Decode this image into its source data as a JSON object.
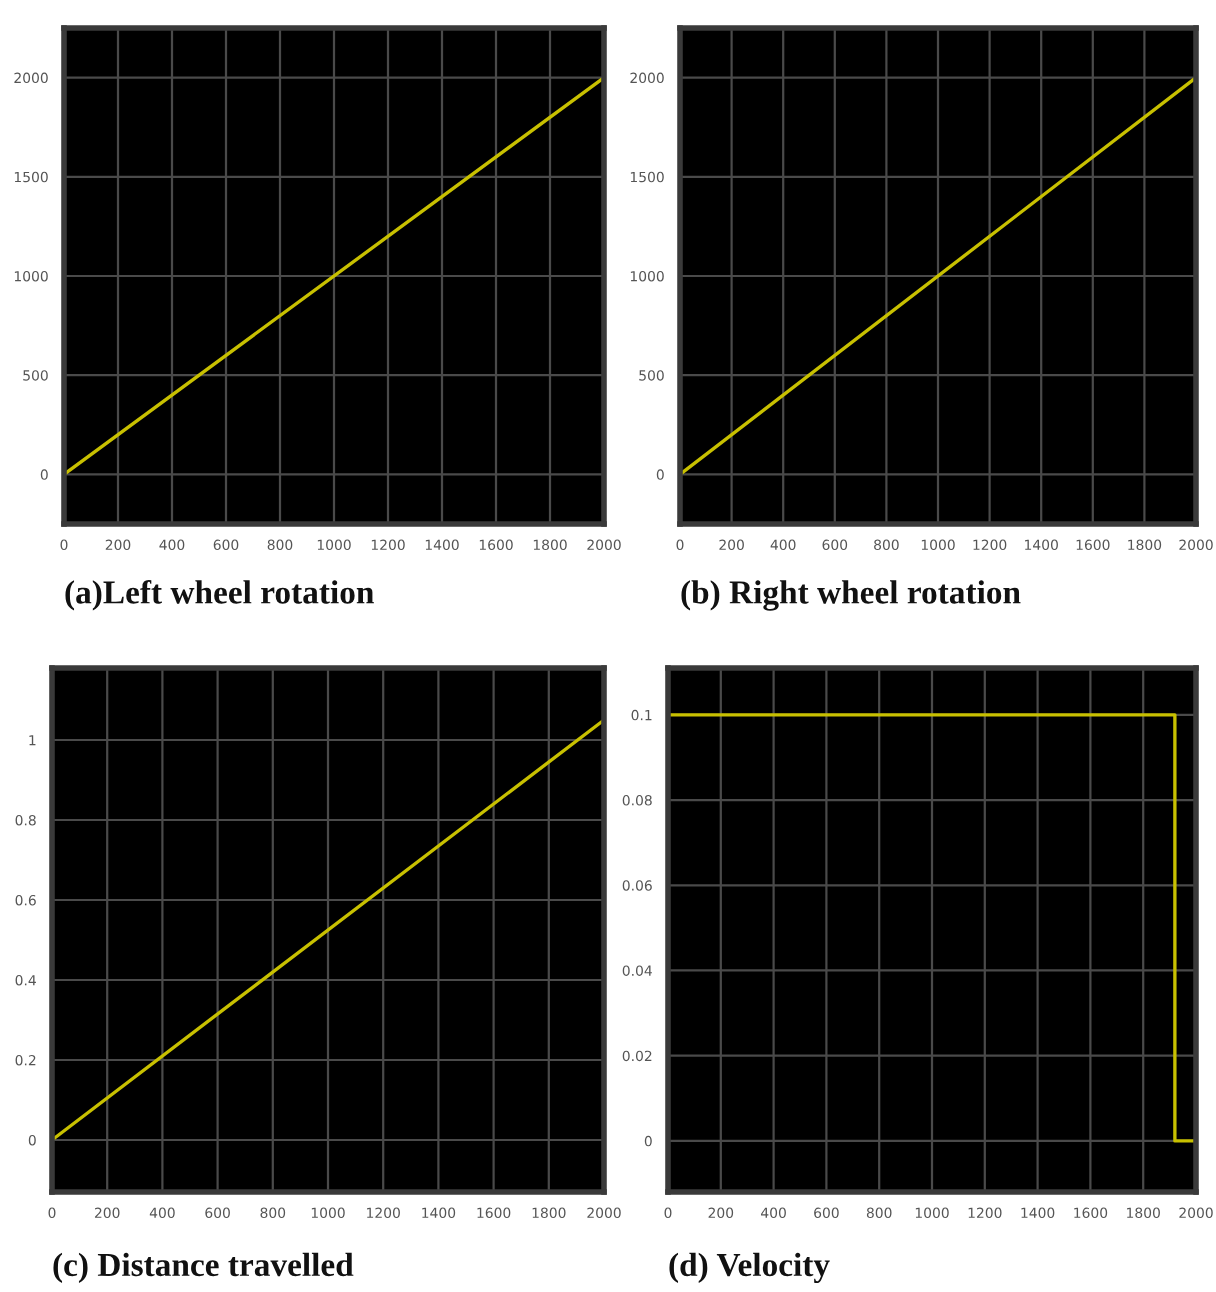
{
  "chart_data": [
    {
      "type": "line",
      "title": "(a)Left wheel rotation",
      "x": [
        0,
        2000
      ],
      "series": [
        {
          "color": "#c8c000",
          "values": [
            0,
            2000
          ]
        }
      ],
      "xlim": [
        0,
        2000
      ],
      "ylim": [
        -250,
        2250
      ],
      "xticks": [
        0,
        200,
        400,
        600,
        800,
        1000,
        1200,
        1400,
        1600,
        1800,
        2000
      ],
      "yticks": [
        0,
        500,
        1000,
        1500,
        2000
      ],
      "grid": true
    },
    {
      "type": "line",
      "title": "(b) Right wheel rotation",
      "x": [
        0,
        2000
      ],
      "series": [
        {
          "color": "#c8c000",
          "values": [
            0,
            2000
          ]
        }
      ],
      "xlim": [
        0,
        2000
      ],
      "ylim": [
        -250,
        2250
      ],
      "xticks": [
        0,
        200,
        400,
        600,
        800,
        1000,
        1200,
        1400,
        1600,
        1800,
        2000
      ],
      "yticks": [
        0,
        500,
        1000,
        1500,
        2000
      ],
      "grid": true
    },
    {
      "type": "line",
      "title": "(c) Distance travelled",
      "x": [
        0,
        2000
      ],
      "series": [
        {
          "color": "#c8c000",
          "values": [
            0,
            1.05
          ]
        }
      ],
      "xlim": [
        0,
        2000
      ],
      "ylim": [
        -0.13,
        1.18
      ],
      "xticks": [
        0,
        200,
        400,
        600,
        800,
        1000,
        1200,
        1400,
        1600,
        1800,
        2000
      ],
      "yticks": [
        0,
        0.2,
        0.4,
        0.6,
        0.8,
        1
      ],
      "grid": true
    },
    {
      "type": "line",
      "title": "(d) Velocity",
      "x": [
        0,
        1920,
        1920,
        2000
      ],
      "series": [
        {
          "color": "#c8c000",
          "values": [
            0.1,
            0.1,
            0,
            0
          ]
        }
      ],
      "xlim": [
        0,
        2000
      ],
      "ylim": [
        -0.012,
        0.111
      ],
      "xticks": [
        0,
        200,
        400,
        600,
        800,
        1000,
        1200,
        1400,
        1600,
        1800,
        2000
      ],
      "yticks": [
        0,
        0.02,
        0.04,
        0.06,
        0.08,
        0.1
      ],
      "grid": true
    }
  ]
}
